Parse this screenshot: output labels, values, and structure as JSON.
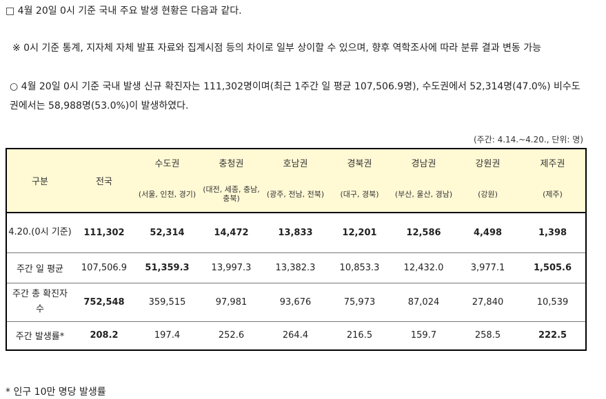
{
  "text": {
    "line1": "□ 4월 20일 0시 기준 국내 주요 발생 현황은 다음과 같다.",
    "line2": "※ 0시 기준 통계, 지자체 자체 발표 자료와 집계시점 등의 차이로 일부 상이할 수 있으며, 향후 역학조사에 따라 분류 결과 변동 가능",
    "line3": "○ 4월 20일 0시 기준 국내 발생 신규 확진자는 111,302명이며(최근 1주간 일 평균 107,506.9명), 수도권에서 52,314명(47.0%) 비수도권에서는 58,988명(53.0%)이 발생하였다.",
    "unit": "(주간: 4.14.~4.20., 단위: 명)",
    "footnote": "* 인구 10만 명당 발생률"
  },
  "table": {
    "corner": "구분",
    "national": "전국",
    "regions": [
      {
        "name": "수도권",
        "sub": "(서울, 인천, 경기)"
      },
      {
        "name": "충청권",
        "sub": "(대전, 세종, 충남, 충북)"
      },
      {
        "name": "호남권",
        "sub": "(광주, 전남, 전북)"
      },
      {
        "name": "경북권",
        "sub": "(대구, 경북)"
      },
      {
        "name": "경남권",
        "sub": "(부산, 울산, 경남)"
      },
      {
        "name": "강원권",
        "sub": "(강원)"
      },
      {
        "name": "제주권",
        "sub": "(제주)"
      }
    ],
    "rows": [
      {
        "label": "4.20.(0시 기준)",
        "values": [
          "111,302",
          "52,314",
          "14,472",
          "13,833",
          "12,201",
          "12,586",
          "4,498",
          "1,398"
        ]
      },
      {
        "label": "주간 일 평균",
        "values": [
          "107,506.9",
          "51,359.3",
          "13,997.3",
          "13,382.3",
          "10,853.3",
          "12,432.0",
          "3,977.1",
          "1,505.6"
        ]
      },
      {
        "label": "주간 총 확진자 수",
        "values": [
          "752,548",
          "359,515",
          "97,981",
          "93,676",
          "75,973",
          "87,024",
          "27,840",
          "10,539"
        ]
      },
      {
        "label": "주간 발생률*",
        "values": [
          "208.2",
          "197.4",
          "252.6",
          "264.4",
          "216.5",
          "159.7",
          "258.5",
          "222.5"
        ]
      }
    ]
  }
}
